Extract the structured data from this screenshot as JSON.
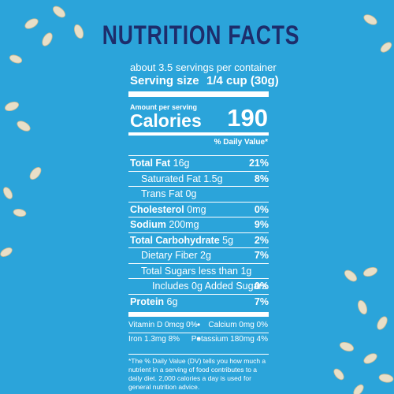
{
  "title": "NUTRITION FACTS",
  "servings": "about 3.5 servings per container",
  "serving_size": {
    "label": "Serving size",
    "value": "1/4 cup (30g)"
  },
  "amount_per_serving": "Amount per serving",
  "calories": {
    "label": "Calories",
    "value": "190"
  },
  "dv_header": "% Daily Value*",
  "nutrients": [
    {
      "name": "Total Fat",
      "amount": "16g",
      "dv": "21%"
    },
    {
      "name": "Saturated Fat",
      "amount": "1.5g",
      "dv": "8%"
    },
    {
      "name": "Trans Fat",
      "amount": "0g"
    },
    {
      "name": "Cholesterol",
      "amount": "0mg",
      "dv": "0%"
    },
    {
      "name": "Sodium",
      "amount": "200mg",
      "dv": "9%"
    },
    {
      "name": "Total Carbohydrate",
      "amount": "5g",
      "dv": "2%"
    },
    {
      "name": "Dietary Fiber",
      "amount": "2g",
      "dv": "7%"
    },
    {
      "name": "Total Sugars",
      "amount": "less than 1g"
    },
    {
      "name": "Includes 0g Added Sugars",
      "dv": "0%"
    },
    {
      "name": "Protein",
      "amount": "6g",
      "dv": "7%"
    }
  ],
  "vitamins": [
    [
      "Vitamin D 0mcg 0%",
      "Calcium 0mg 0%"
    ],
    [
      "Iron 1.3mg 8%",
      "Potassium 180mg 4%"
    ]
  ],
  "footnote": "*The % Daily Value (DV) tells you how much a nutrient in a serving of food contributes to a daily diet. 2,000 calories a day is used for general nutrition advice."
}
